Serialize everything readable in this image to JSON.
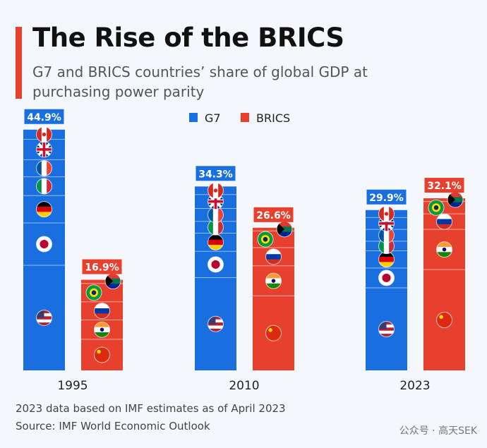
{
  "title": "The Rise of the BRICS",
  "subtitle": "G7 and BRICS countries’ share of global GDP at purchasing power parity",
  "footnote": "2023 data based on IMF estimates as of April 2023",
  "source": "Source: IMF World Economic Outlook",
  "watermark": "公众号 · 高天SEK",
  "colors": {
    "G7": "#1a6fe0",
    "BRICS": "#e8402e"
  },
  "chart_data": {
    "type": "bar",
    "stacked": true,
    "unit": "%",
    "categories": [
      "1995",
      "2010",
      "2023"
    ],
    "legend": [
      "G7",
      "BRICS"
    ],
    "legend_placement": "top-center",
    "series": [
      {
        "name": "G7",
        "values": [
          44.9,
          34.3,
          29.9
        ],
        "labels": [
          "44.9%",
          "34.3%",
          "29.9%"
        ],
        "segments_bottom_to_top": [
          "United States",
          "Japan",
          "Germany",
          "Italy",
          "France",
          "United Kingdom",
          "Canada"
        ],
        "segment_values": [
          [
            19.6,
            7.9,
            5.1,
            3.5,
            3.2,
            3.8,
            1.8
          ],
          [
            17.3,
            4.9,
            3.4,
            2.2,
            2.4,
            2.6,
            1.5
          ],
          [
            15.4,
            3.7,
            3.2,
            1.8,
            2.2,
            2.2,
            1.4
          ]
        ]
      },
      {
        "name": "BRICS",
        "values": [
          16.9,
          26.6,
          32.1
        ],
        "labels": [
          "16.9%",
          "26.6%",
          "32.1%"
        ],
        "segments_bottom_to_top": [
          "China",
          "India",
          "Russia",
          "Brazil",
          "South Africa"
        ],
        "segment_values": [
          [
            5.8,
            3.6,
            3.4,
            3.4,
            0.7
          ],
          [
            13.9,
            5.6,
            3.4,
            3.1,
            0.6
          ],
          [
            18.8,
            7.5,
            2.9,
            2.3,
            0.6
          ]
        ]
      }
    ],
    "grid": false
  }
}
